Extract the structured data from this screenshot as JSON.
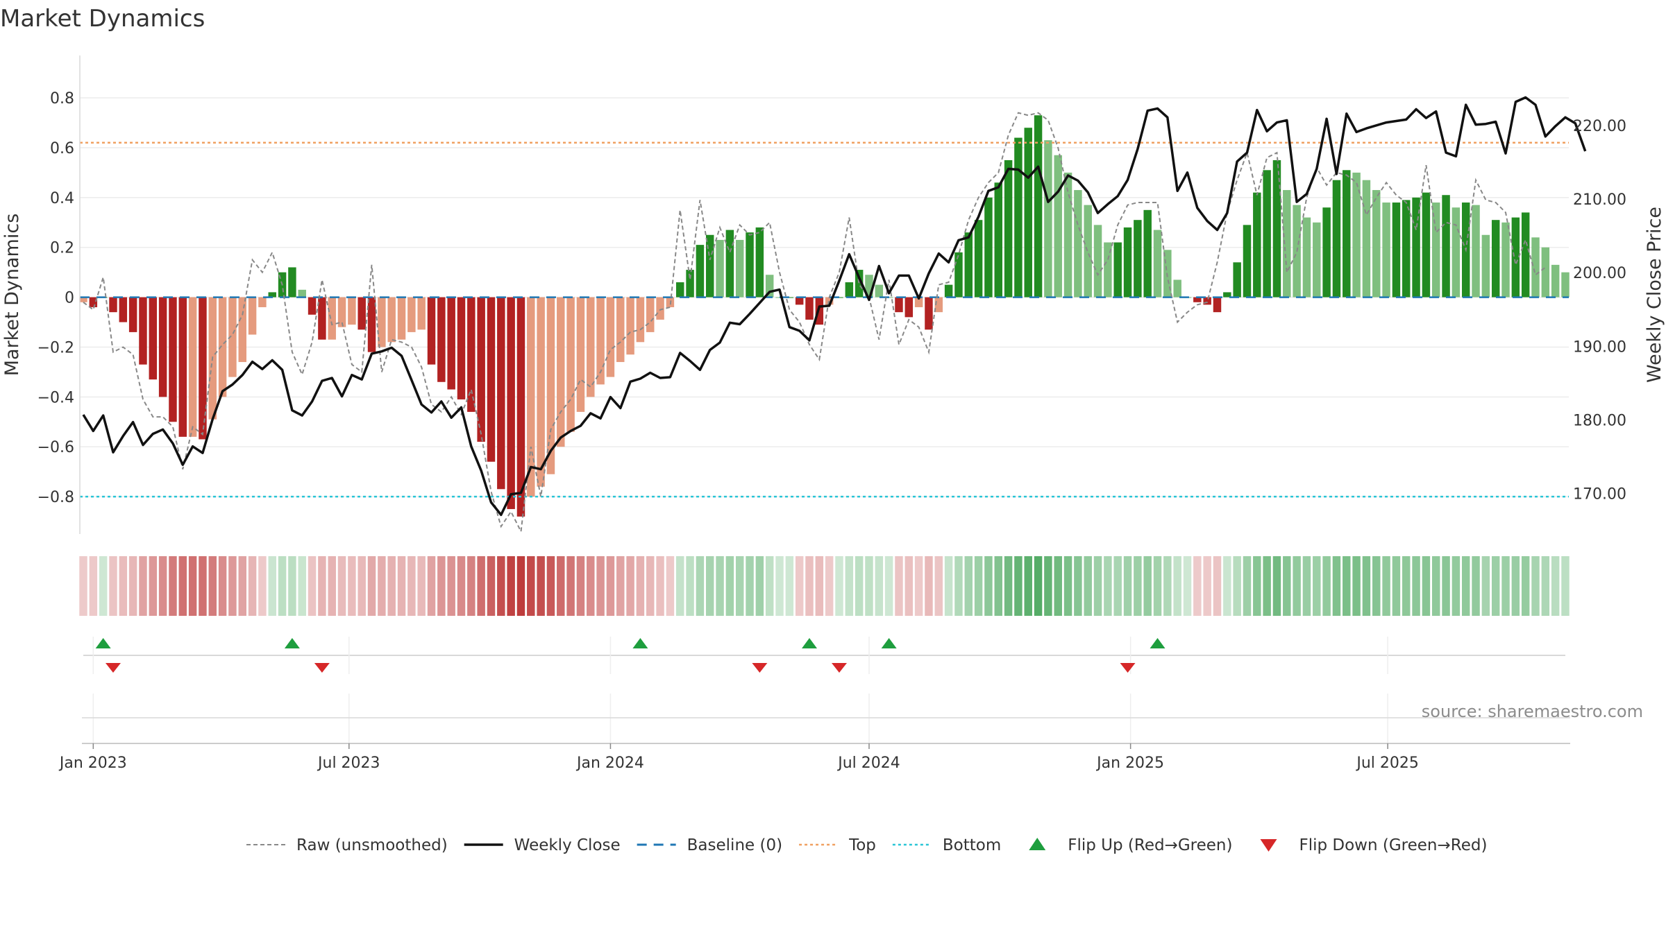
{
  "title": "Market Dynamics",
  "source": "source: sharemaestro.com",
  "colors": {
    "strong_green": "#228b22",
    "light_green": "#7fbf7f",
    "strong_red": "#b22222",
    "light_red": "#e59b7e",
    "raw": "#888888",
    "close": "#111111",
    "baseline": "#1f77b4",
    "top": "#f0a060",
    "bottom": "#29c5d6",
    "flip_up": "#1e9e3e",
    "flip_down": "#d62728"
  },
  "legend": [
    {
      "key": "raw",
      "label": "Raw (unsmoothed)"
    },
    {
      "key": "close",
      "label": "Weekly Close"
    },
    {
      "key": "baseline",
      "label": "Baseline (0)"
    },
    {
      "key": "top",
      "label": "Top"
    },
    {
      "key": "bottom",
      "label": "Bottom"
    },
    {
      "key": "flip_up",
      "label": "Flip Up (Red→Green)"
    },
    {
      "key": "flip_down",
      "label": "Flip Down (Green→Red)"
    }
  ],
  "chart_data": {
    "type": "bar",
    "title": "Market Dynamics",
    "ylabel": "Market Dynamics",
    "y2label": "Weekly Close Price",
    "ylim": [
      -0.95,
      0.97
    ],
    "y2lim": [
      164.5,
      229.5
    ],
    "yticks": [
      0.8,
      0.6,
      0.4,
      0.2,
      0,
      -0.2,
      -0.4,
      -0.6,
      -0.8
    ],
    "ytick_labels": [
      "0.8",
      "0.6",
      "0.4",
      "0.2",
      "0",
      "−0.2",
      "−0.4",
      "−0.6",
      "−0.8"
    ],
    "y2ticks": [
      220,
      210,
      200,
      190,
      180,
      170
    ],
    "y2tick_labels": [
      "220.00",
      "210.00",
      "200.00",
      "190.00",
      "180.00",
      "170.00"
    ],
    "x_start": "2022-12-26",
    "x_ticks": [
      {
        "date": "2023-01-02",
        "label": "Jan 2023"
      },
      {
        "date": "2023-07-01",
        "label": "Jul 2023"
      },
      {
        "date": "2024-01-01",
        "label": "Jan 2024"
      },
      {
        "date": "2024-07-01",
        "label": "Jul 2024"
      },
      {
        "date": "2025-01-01",
        "label": "Jan 2025"
      },
      {
        "date": "2025-07-01",
        "label": "Jul 2025"
      }
    ],
    "top": 0.62,
    "bottom": -0.8,
    "baseline": 0,
    "legend_position": "bottom",
    "series": [
      {
        "name": "Raw (unsmoothed)",
        "values": [
          -0.02,
          -0.05,
          0.08,
          -0.22,
          -0.2,
          -0.23,
          -0.41,
          -0.48,
          -0.48,
          -0.52,
          -0.69,
          -0.52,
          -0.55,
          -0.24,
          -0.19,
          -0.15,
          -0.07,
          0.15,
          0.1,
          0.18,
          0.05,
          -0.22,
          -0.31,
          -0.18,
          0.07,
          -0.11,
          -0.1,
          -0.27,
          -0.3,
          0.13,
          -0.3,
          -0.17,
          -0.18,
          -0.2,
          -0.28,
          -0.43,
          -0.46,
          -0.4,
          -0.47,
          -0.37,
          -0.55,
          -0.78,
          -0.92,
          -0.86,
          -0.94,
          -0.6,
          -0.8,
          -0.53,
          -0.46,
          -0.41,
          -0.33,
          -0.36,
          -0.3,
          -0.21,
          -0.18,
          -0.14,
          -0.13,
          -0.1,
          -0.05,
          -0.04,
          0.35,
          0.07,
          0.39,
          0.15,
          0.28,
          0.18,
          0.29,
          0.25,
          0.26,
          0.3,
          0.1,
          -0.05,
          -0.1,
          -0.19,
          -0.25,
          0.0,
          0.1,
          0.32,
          0.05,
          0.0,
          -0.17,
          0.07,
          -0.19,
          -0.09,
          -0.12,
          -0.22,
          0.05,
          0.06,
          0.17,
          0.31,
          0.4,
          0.46,
          0.5,
          0.65,
          0.74,
          0.73,
          0.74,
          0.71,
          0.6,
          0.42,
          0.29,
          0.18,
          0.09,
          0.15,
          0.29,
          0.37,
          0.38,
          0.38,
          0.38,
          0.08,
          -0.1,
          -0.06,
          -0.03,
          -0.02,
          0.14,
          0.34,
          0.47,
          0.58,
          0.41,
          0.56,
          0.58,
          0.1,
          0.18,
          0.4,
          0.52,
          0.45,
          0.5,
          0.49,
          0.46,
          0.33,
          0.4,
          0.46,
          0.41,
          0.38,
          0.27,
          0.53,
          0.26,
          0.3,
          0.29,
          0.19,
          0.47,
          0.39,
          0.38,
          0.34,
          0.13,
          0.23,
          0.09,
          0.12
        ]
      },
      {
        "name": "Weekly Close",
        "values": [
          180.7,
          178.5,
          180.6,
          175.6,
          177.8,
          179.7,
          176.6,
          178.1,
          178.7,
          176.8,
          173.9,
          176.4,
          175.5,
          180.1,
          183.9,
          184.8,
          186.1,
          187.9,
          186.9,
          188.1,
          186.8,
          181.3,
          180.6,
          182.5,
          185.3,
          185.7,
          183.2,
          186.1,
          185.5,
          189.0,
          189.3,
          189.8,
          188.7,
          185.4,
          182.1,
          181.0,
          182.5,
          180.3,
          181.7,
          176.4,
          173.1,
          168.8,
          167.1,
          169.9,
          170.1,
          173.6,
          173.3,
          175.8,
          177.6,
          178.5,
          179.2,
          180.9,
          180.2,
          183.1,
          181.6,
          185.2,
          185.6,
          186.4,
          185.7,
          185.8,
          189.1,
          188.0,
          186.8,
          189.5,
          190.5,
          193.2,
          193.0,
          194.4,
          195.9,
          197.4,
          197.7,
          192.6,
          192.1,
          190.8,
          195.4,
          195.5,
          198.9,
          202.5,
          199.3,
          196.3,
          200.9,
          197.2,
          199.6,
          199.6,
          196.5,
          199.9,
          202.6,
          201.4,
          204.4,
          204.8,
          207.6,
          211.1,
          211.6,
          214.1,
          214.0,
          212.9,
          214.4,
          209.6,
          211.0,
          213.2,
          212.5,
          210.9,
          208.1,
          209.3,
          210.4,
          212.6,
          216.8,
          222.0,
          222.3,
          221.1,
          211.1,
          213.6,
          208.8,
          207.0,
          205.8,
          208.1,
          215.1,
          216.3,
          222.1,
          219.2,
          220.4,
          220.7,
          209.6,
          210.7,
          214.1,
          220.9,
          213.4,
          221.6,
          219.1,
          219.6,
          220.0,
          220.4,
          220.6,
          220.8,
          222.2,
          221.0,
          221.9,
          216.3,
          215.8,
          222.8,
          220.1,
          220.2,
          220.5,
          216.2,
          223.2,
          223.8,
          222.8,
          218.5,
          219.9,
          221.1,
          220.3,
          216.5
        ]
      },
      {
        "name": "Market Dynamics",
        "values": [
          -0.02,
          -0.04,
          0.0,
          -0.06,
          -0.1,
          -0.14,
          -0.27,
          -0.33,
          -0.4,
          -0.5,
          -0.56,
          -0.56,
          -0.57,
          -0.49,
          -0.4,
          -0.32,
          -0.26,
          -0.15,
          -0.04,
          0.02,
          0.1,
          0.12,
          0.03,
          -0.07,
          -0.17,
          -0.17,
          -0.12,
          -0.11,
          -0.13,
          -0.22,
          -0.2,
          -0.18,
          -0.17,
          -0.14,
          -0.13,
          -0.27,
          -0.34,
          -0.37,
          -0.41,
          -0.46,
          -0.58,
          -0.66,
          -0.77,
          -0.85,
          -0.88,
          -0.8,
          -0.76,
          -0.71,
          -0.6,
          -0.54,
          -0.46,
          -0.4,
          -0.35,
          -0.32,
          -0.26,
          -0.23,
          -0.18,
          -0.14,
          -0.09,
          -0.04,
          0.06,
          0.11,
          0.21,
          0.25,
          0.23,
          0.27,
          0.23,
          0.26,
          0.28,
          0.09,
          0.0,
          0.0,
          -0.03,
          -0.09,
          -0.11,
          -0.03,
          0.0,
          0.06,
          0.11,
          0.09,
          0.05,
          0.0,
          -0.06,
          -0.08,
          -0.04,
          -0.13,
          -0.06,
          0.05,
          0.18,
          0.26,
          0.31,
          0.4,
          0.46,
          0.55,
          0.64,
          0.68,
          0.73,
          0.63,
          0.57,
          0.5,
          0.43,
          0.37,
          0.29,
          0.22,
          0.22,
          0.28,
          0.31,
          0.35,
          0.27,
          0.19,
          0.07,
          0.0,
          -0.02,
          -0.03,
          -0.06,
          0.02,
          0.14,
          0.29,
          0.42,
          0.51,
          0.55,
          0.43,
          0.37,
          0.32,
          0.3,
          0.36,
          0.47,
          0.51,
          0.5,
          0.47,
          0.43,
          0.38,
          0.38,
          0.39,
          0.4,
          0.42,
          0.38,
          0.41,
          0.36,
          0.38,
          0.37,
          0.25,
          0.31,
          0.3,
          0.32,
          0.34,
          0.24,
          0.2,
          0.13,
          0.1
        ]
      }
    ],
    "flips_up": [
      "2023-01-09",
      "2023-05-22",
      "2024-01-22",
      "2024-05-20",
      "2024-07-15",
      "2025-01-20"
    ],
    "flips_down": [
      "2023-01-16",
      "2023-06-12",
      "2024-04-15",
      "2024-06-10",
      "2024-12-30"
    ]
  }
}
